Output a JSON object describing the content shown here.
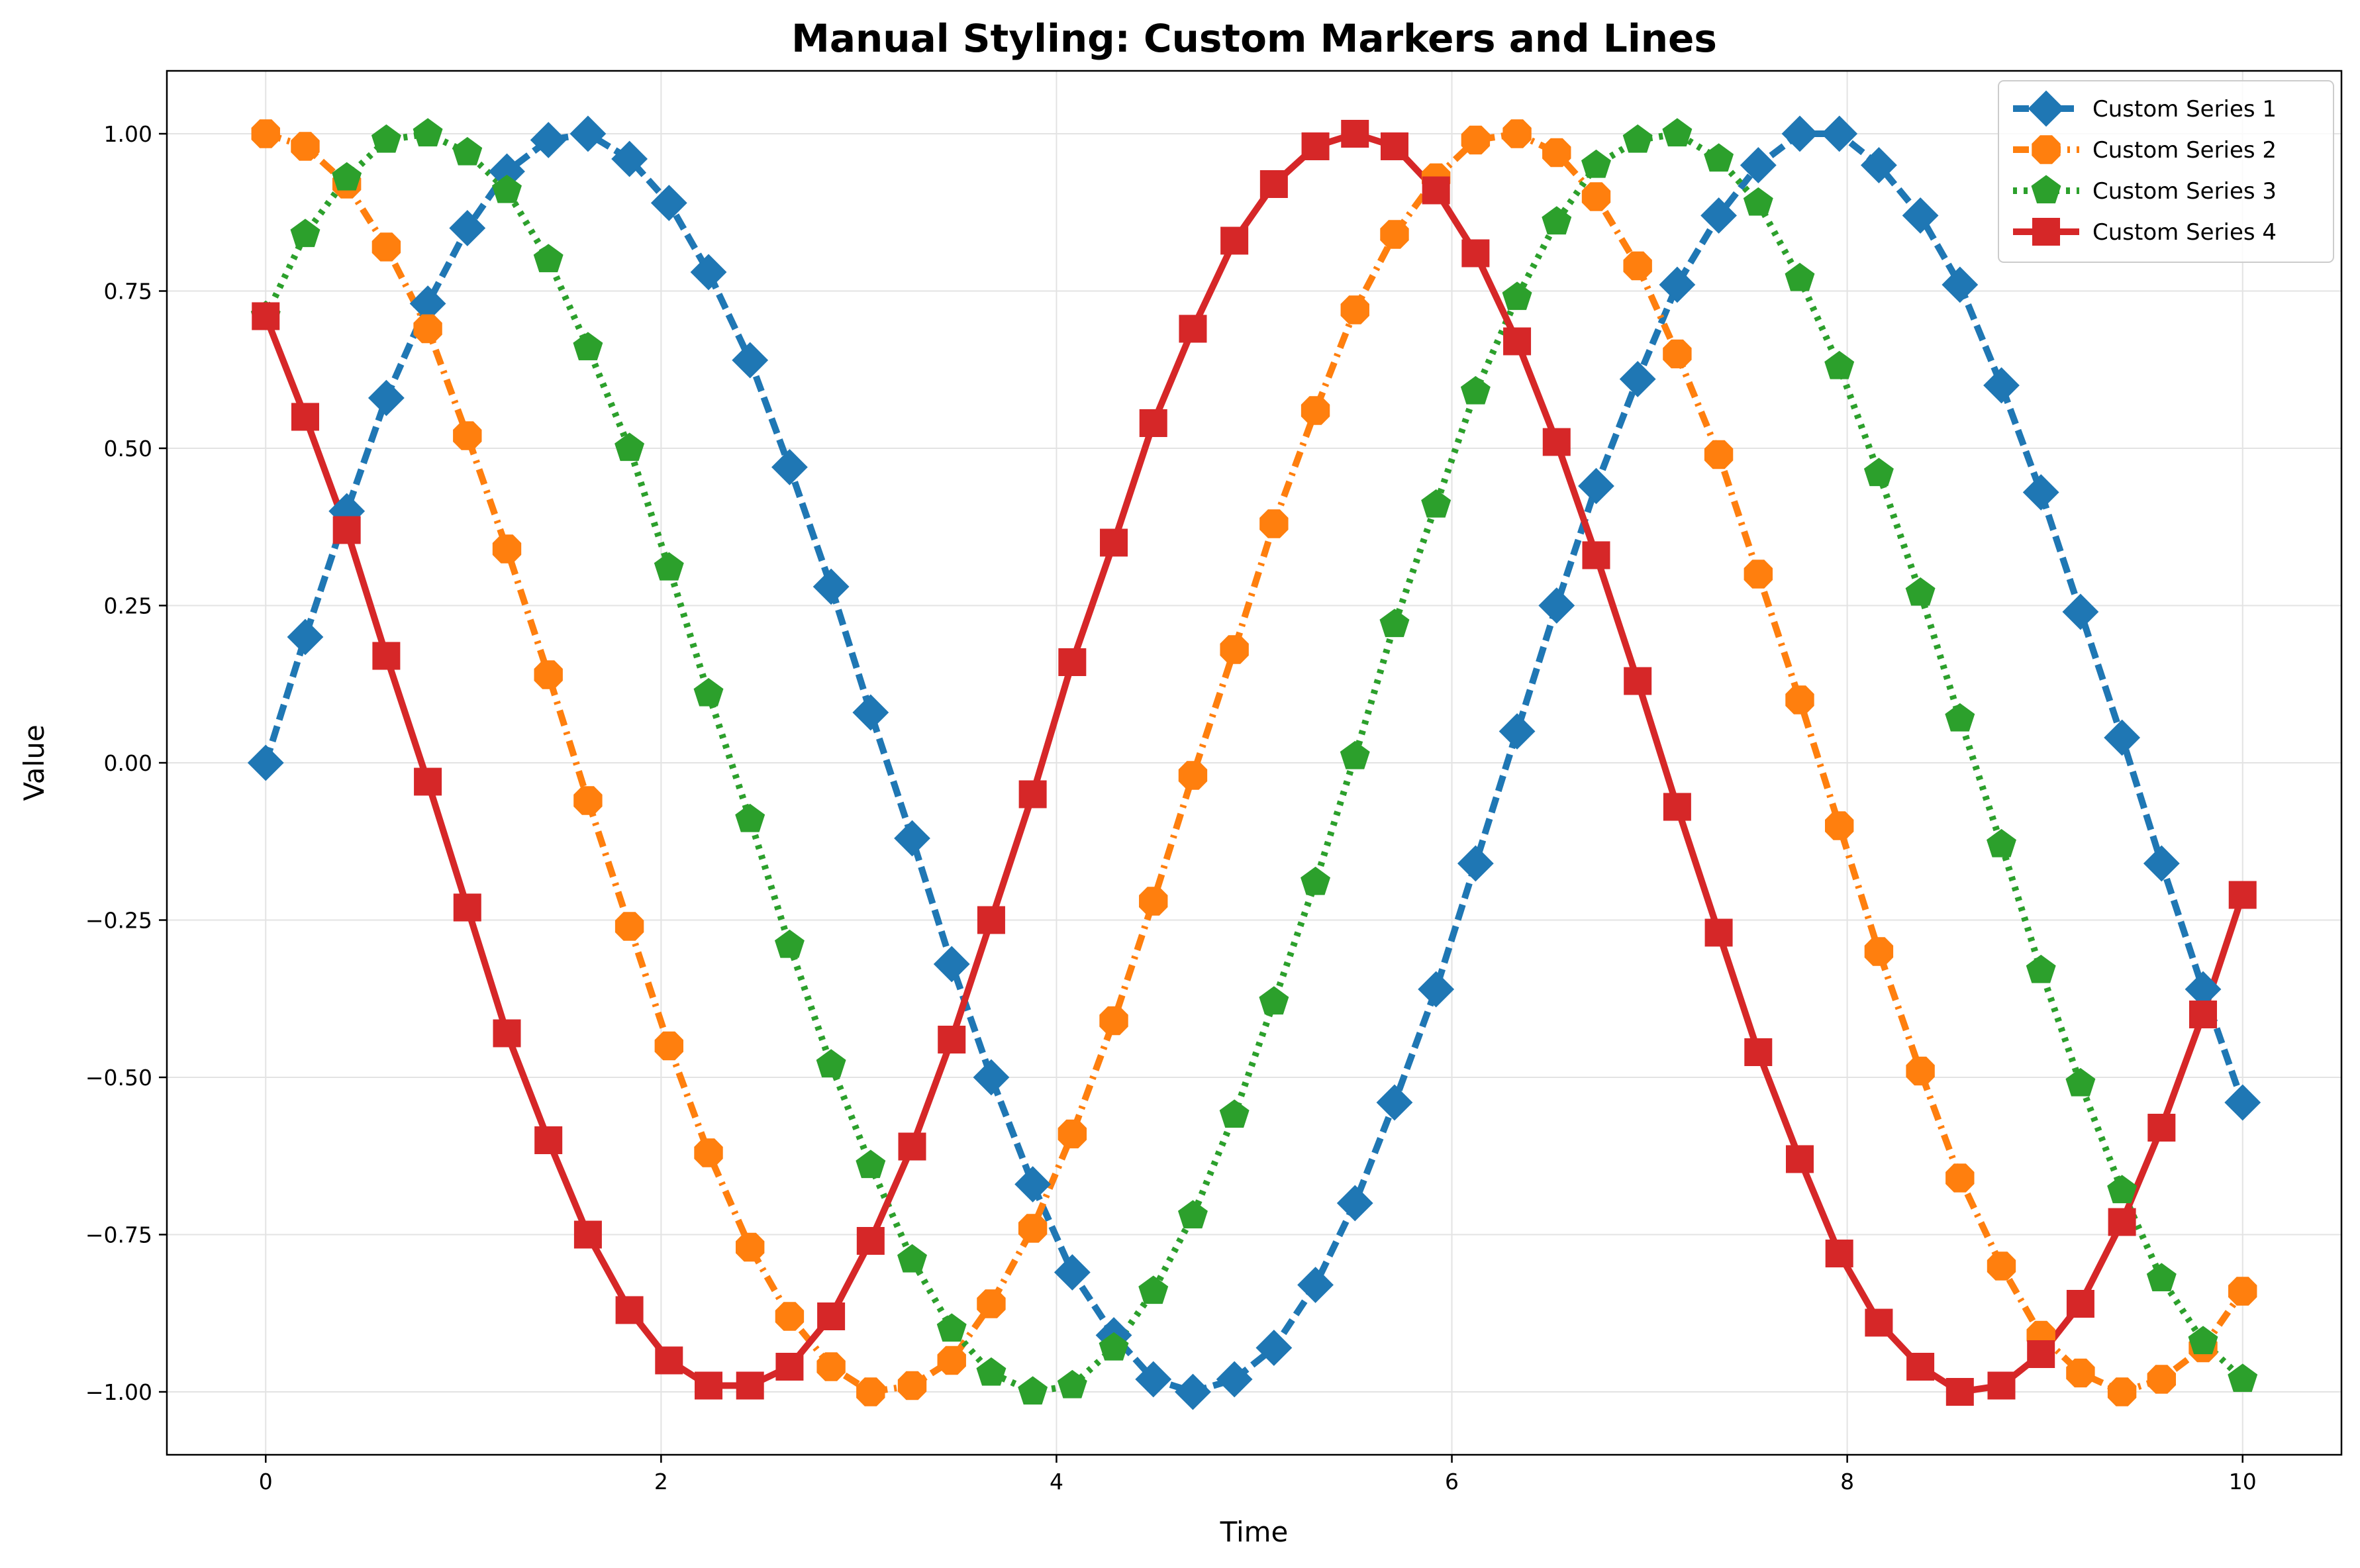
{
  "chart_data": {
    "type": "line",
    "title": "Manual Styling: Custom Markers and Lines",
    "xlabel": "Time",
    "ylabel": "Value",
    "xlim": [
      -0.5,
      10.5
    ],
    "ylim": [
      -1.1,
      1.1
    ],
    "xticks": [
      0,
      2,
      4,
      6,
      8,
      10
    ],
    "yticks": [
      -1.0,
      -0.75,
      -0.5,
      -0.25,
      0.0,
      0.25,
      0.5,
      0.75,
      1.0
    ],
    "xtick_labels": [
      "0",
      "2",
      "4",
      "6",
      "8",
      "10"
    ],
    "ytick_labels": [
      "−1.00",
      "−0.75",
      "−0.50",
      "−0.25",
      "0.00",
      "0.25",
      "0.50",
      "0.75",
      "1.00"
    ],
    "grid": true,
    "legend_position": "top-right",
    "x": [
      0,
      0.2,
      0.41,
      0.61,
      0.82,
      1.02,
      1.22,
      1.43,
      1.63,
      1.84,
      2.04,
      2.24,
      2.45,
      2.65,
      2.86,
      3.06,
      3.27,
      3.47,
      3.67,
      3.88,
      4.08,
      4.29,
      4.49,
      4.69,
      4.9,
      5.1,
      5.31,
      5.51,
      5.71,
      5.92,
      6.12,
      6.33,
      6.53,
      6.73,
      6.94,
      7.14,
      7.35,
      7.55,
      7.76,
      7.96,
      8.16,
      8.37,
      8.57,
      8.78,
      8.98,
      9.18,
      9.39,
      9.59,
      9.8,
      10
    ],
    "series": [
      {
        "name": "Custom Series 1",
        "color": "#1f77b4",
        "marker": "diamond",
        "linestyle": "dashed",
        "values": [
          0.0,
          0.2,
          0.4,
          0.58,
          0.73,
          0.85,
          0.94,
          0.99,
          1.0,
          0.96,
          0.89,
          0.78,
          0.64,
          0.47,
          0.28,
          0.08,
          -0.12,
          -0.32,
          -0.5,
          -0.67,
          -0.81,
          -0.91,
          -0.98,
          -1.0,
          -0.98,
          -0.93,
          -0.83,
          -0.7,
          -0.54,
          -0.36,
          -0.16,
          0.05,
          0.25,
          0.44,
          0.61,
          0.76,
          0.87,
          0.95,
          1.0,
          1.0,
          0.95,
          0.87,
          0.76,
          0.6,
          0.43,
          0.24,
          0.04,
          -0.16,
          -0.36,
          -0.54
        ]
      },
      {
        "name": "Custom Series 2",
        "color": "#ff7f0e",
        "marker": "octagon",
        "linestyle": "dashdot",
        "values": [
          1.0,
          0.98,
          0.92,
          0.82,
          0.69,
          0.52,
          0.34,
          0.14,
          -0.06,
          -0.26,
          -0.45,
          -0.62,
          -0.77,
          -0.88,
          -0.96,
          -1.0,
          -0.99,
          -0.95,
          -0.86,
          -0.74,
          -0.59,
          -0.41,
          -0.22,
          -0.02,
          0.18,
          0.38,
          0.56,
          0.72,
          0.84,
          0.93,
          0.99,
          1.0,
          0.97,
          0.9,
          0.79,
          0.65,
          0.49,
          0.3,
          0.1,
          -0.1,
          -0.3,
          -0.49,
          -0.66,
          -0.8,
          -0.91,
          -0.97,
          -1.0,
          -0.98,
          -0.93,
          -0.84
        ]
      },
      {
        "name": "Custom Series 3",
        "color": "#2ca02c",
        "marker": "pentagon",
        "linestyle": "dotted",
        "values": [
          0.71,
          0.84,
          0.93,
          0.99,
          1.0,
          0.97,
          0.91,
          0.8,
          0.66,
          0.5,
          0.31,
          0.11,
          -0.09,
          -0.29,
          -0.48,
          -0.64,
          -0.79,
          -0.9,
          -0.97,
          -1.0,
          -0.99,
          -0.93,
          -0.84,
          -0.72,
          -0.56,
          -0.38,
          -0.19,
          0.01,
          0.22,
          0.41,
          0.59,
          0.74,
          0.86,
          0.95,
          0.99,
          1.0,
          0.96,
          0.89,
          0.77,
          0.63,
          0.46,
          0.27,
          0.07,
          -0.13,
          -0.33,
          -0.51,
          -0.68,
          -0.82,
          -0.92,
          -0.98
        ]
      },
      {
        "name": "Custom Series 4",
        "color": "#d62728",
        "marker": "square",
        "linestyle": "solid",
        "values": [
          0.71,
          0.55,
          0.37,
          0.17,
          -0.03,
          -0.23,
          -0.43,
          -0.6,
          -0.75,
          -0.87,
          -0.95,
          -0.99,
          -0.99,
          -0.96,
          -0.88,
          -0.76,
          -0.61,
          -0.44,
          -0.25,
          -0.05,
          0.16,
          0.35,
          0.54,
          0.69,
          0.83,
          0.92,
          0.98,
          1.0,
          0.98,
          0.91,
          0.81,
          0.67,
          0.51,
          0.33,
          0.13,
          -0.07,
          -0.27,
          -0.46,
          -0.63,
          -0.78,
          -0.89,
          -0.96,
          -1.0,
          -0.99,
          -0.94,
          -0.86,
          -0.73,
          -0.58,
          -0.4,
          -0.21
        ]
      }
    ]
  }
}
